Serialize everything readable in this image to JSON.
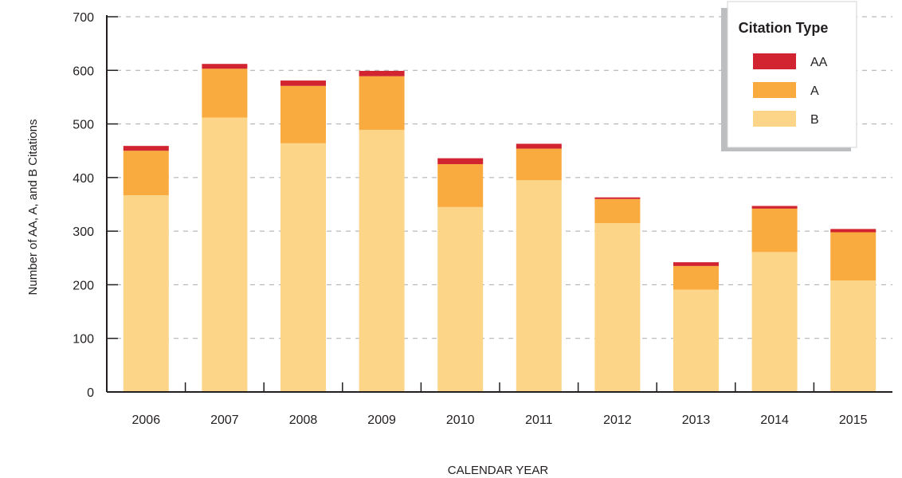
{
  "chart_data": {
    "type": "bar",
    "stacked": true,
    "title": "",
    "xlabel": "CALENDAR YEAR",
    "ylabel": "Number of AA, A, and B Citations",
    "ylim": [
      0,
      700
    ],
    "yticks": [
      0,
      100,
      200,
      300,
      400,
      500,
      600,
      700
    ],
    "grid": "horizontal dashed",
    "legend_position": "top-right",
    "categories": [
      "2006",
      "2007",
      "2008",
      "2009",
      "2010",
      "2011",
      "2012",
      "2013",
      "2014",
      "2015"
    ],
    "series": [
      {
        "name": "B",
        "color": "#fcd589",
        "values": [
          367,
          512,
          464,
          489,
          345,
          395,
          315,
          191,
          261,
          208
        ]
      },
      {
        "name": "A",
        "color": "#f9ab40",
        "values": [
          83,
          91,
          107,
          100,
          80,
          59,
          45,
          44,
          81,
          90
        ]
      },
      {
        "name": "AA",
        "color": "#d12430",
        "values": [
          9,
          9,
          10,
          10,
          11,
          9,
          3,
          7,
          5,
          6
        ]
      }
    ]
  },
  "legend": {
    "title": "Citation Type",
    "items": [
      {
        "label": "AA",
        "color": "#d12430"
      },
      {
        "label": "A",
        "color": "#f9ab40"
      },
      {
        "label": "B",
        "color": "#fcd589"
      }
    ]
  }
}
